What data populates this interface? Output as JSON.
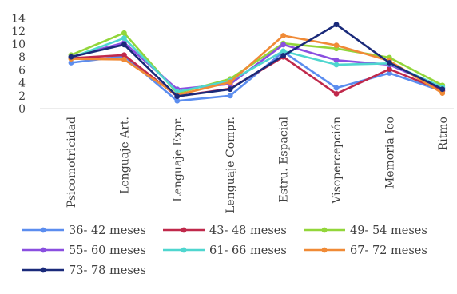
{
  "chart_data": {
    "type": "line",
    "title": "",
    "xlabel": "",
    "ylabel": "",
    "categories": [
      "Psicomotricidad",
      "Lenguaje Art.",
      "Lenguaje Expr.",
      "Lenguaje Compr.",
      "Estru. Espacial",
      "Visopercepción",
      "Memoria Ico",
      "Ritmo"
    ],
    "ylim": [
      0,
      14
    ],
    "yticks": [
      "0",
      "2",
      "4",
      "6",
      "8",
      "10",
      "12",
      "14"
    ],
    "grid": false,
    "legend_position": "bottom",
    "series": [
      {
        "name": "36- 42 meses",
        "color": "#5b8def",
        "values": [
          7.1,
          8.1,
          1.2,
          2.0,
          8.8,
          3.2,
          5.5,
          2.7
        ]
      },
      {
        "name": "43- 48 meses",
        "color": "#c0294b",
        "values": [
          7.8,
          8.3,
          1.9,
          3.1,
          8.0,
          2.3,
          6.1,
          2.8
        ]
      },
      {
        "name": "49- 54 meses",
        "color": "#92d63a",
        "values": [
          8.3,
          11.7,
          2.4,
          4.6,
          10.1,
          9.3,
          7.9,
          3.6
        ]
      },
      {
        "name": "55- 60 meses",
        "color": "#8a4fe0",
        "values": [
          8.0,
          10.2,
          3.0,
          3.8,
          9.9,
          7.5,
          6.8,
          3.2
        ]
      },
      {
        "name": "61- 66 meses",
        "color": "#4fd6cf",
        "values": [
          7.9,
          10.9,
          2.6,
          4.3,
          8.9,
          6.8,
          7.0,
          3.3
        ]
      },
      {
        "name": "67- 72 meses",
        "color": "#f08a36",
        "values": [
          7.7,
          7.6,
          2.1,
          4.1,
          11.3,
          9.8,
          7.4,
          2.4
        ]
      },
      {
        "name": "73- 78 meses",
        "color": "#1a2a7a",
        "values": [
          8.0,
          9.9,
          1.9,
          3.0,
          8.2,
          13.0,
          7.1,
          3.0
        ]
      }
    ]
  }
}
